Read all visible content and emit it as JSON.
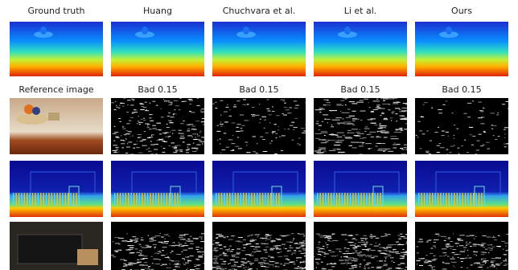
{
  "figure": {
    "columns": [
      {
        "header": "Ground truth",
        "row_label": "Reference image"
      },
      {
        "header": "Huang",
        "row_label": "Bad 0.15"
      },
      {
        "header": "Chuchvara et al.",
        "row_label": "Bad 0.15"
      },
      {
        "header": "Li et al.",
        "row_label": "Bad 0.15"
      },
      {
        "header": "Ours",
        "row_label": "Bad 0.15"
      }
    ]
  }
}
